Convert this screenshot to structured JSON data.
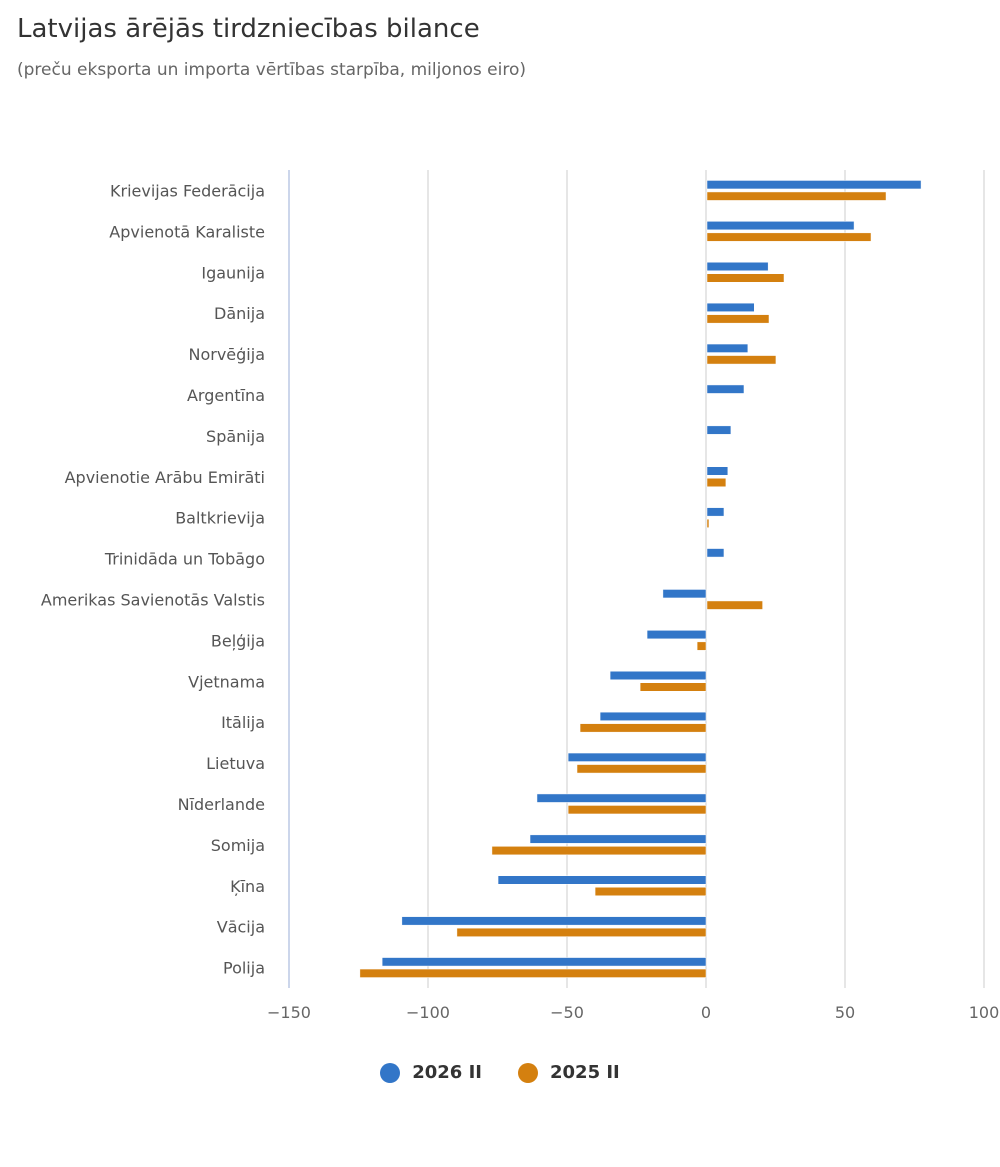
{
  "header": {
    "title": "Latvijas ārējās tirdzniecības bilance",
    "subtitle": "(preču eksporta un importa vērtības starpība, miljonos eiro)"
  },
  "chart_data": {
    "type": "bar",
    "orientation": "horizontal",
    "title": "Latvijas ārējās tirdzniecības bilance",
    "subtitle": "(preču eksporta un importa vērtības starpība, miljonos eiro)",
    "xlabel": "",
    "ylabel": "",
    "xlim": [
      -150,
      100
    ],
    "xticks": [
      -150,
      -100,
      -50,
      0,
      50,
      100
    ],
    "xtick_labels": [
      "−150",
      "−100",
      "−50",
      "0",
      "50",
      "100"
    ],
    "grid": true,
    "legend_position": "bottom-center",
    "categories": [
      "Krievijas Federācija",
      "Apvienotā Karaliste",
      "Igaunija",
      "Dānija",
      "Norvēģija",
      "Argentīna",
      "Spānija",
      "Apvienotie Arābu Emirāti",
      "Baltkrievija",
      "Trinidāda un Tobāgo",
      "Amerikas Savienotās Valstis",
      "Beļģija",
      "Vjetnama",
      "Itālija",
      "Lietuva",
      "Nīderlande",
      "Somija",
      "Ķīna",
      "Vācija",
      "Polija"
    ],
    "series": [
      {
        "name": "2026 II",
        "color": "#3276c8",
        "values": [
          77.0,
          52.9,
          22.0,
          17.0,
          14.7,
          13.3,
          8.6,
          7.5,
          6.1,
          6.1,
          -15.5,
          -21.2,
          -34.5,
          -38.1,
          -49.6,
          -60.8,
          -63.3,
          -74.8,
          -109.4,
          -116.5
        ]
      },
      {
        "name": "2025 II",
        "color": "#d4800f",
        "values": [
          64.4,
          59.0,
          27.7,
          22.3,
          24.8,
          null,
          null,
          6.8,
          0.7,
          null,
          20.0,
          -3.2,
          -23.7,
          -45.3,
          -46.4,
          -49.6,
          -77.0,
          -39.9,
          -89.6,
          -124.5
        ]
      }
    ]
  }
}
